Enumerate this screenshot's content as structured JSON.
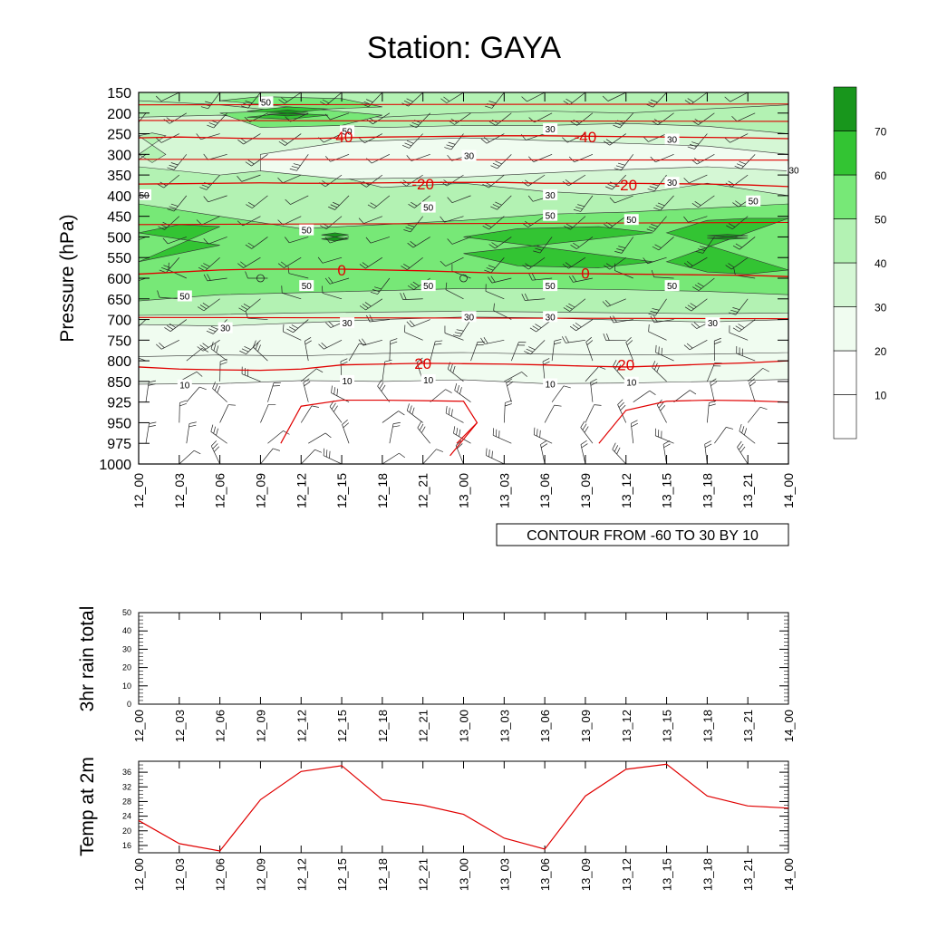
{
  "title": "Station: GAYA",
  "info_label": "CONTOUR FROM -60 TO 30 BY 10",
  "colors": {
    "fill_levels": [
      "#ffffff",
      "#f0fcf0",
      "#d5f7d5",
      "#b3f2b3",
      "#77e877",
      "#33c433",
      "#18961c"
    ],
    "temp_line": "#e00000"
  },
  "chart_data": [
    {
      "type": "heatmap",
      "ylabel": "Pressure (hPa)",
      "y_levels": [
        150,
        200,
        250,
        300,
        350,
        400,
        450,
        500,
        550,
        600,
        650,
        700,
        750,
        800,
        850,
        925,
        950,
        975,
        1000
      ],
      "x_ticks": [
        "12_00",
        "12_03",
        "12_06",
        "12_09",
        "12_12",
        "12_15",
        "12_18",
        "12_21",
        "13_00",
        "13_03",
        "13_06",
        "13_09",
        "13_12",
        "13_15",
        "13_18",
        "13_21",
        "14_00"
      ],
      "colorbar_ticks": [
        10,
        20,
        30,
        40,
        50,
        60,
        70
      ],
      "humidity_labels": [
        {
          "text": "50",
          "x": "12_09",
          "y": 175
        },
        {
          "text": "50",
          "x": "12_15",
          "y": 245
        },
        {
          "text": "30",
          "x": "13_06",
          "y": 240
        },
        {
          "text": "30",
          "x": "13_15",
          "y": 265
        },
        {
          "text": "30",
          "x": "13_00",
          "y": 305
        },
        {
          "text": "30",
          "x": "14_00",
          "y": 340
        },
        {
          "text": "50",
          "x": "12_00",
          "y": 400
        },
        {
          "text": "30",
          "x": "13_06",
          "y": 400
        },
        {
          "text": "30",
          "x": "13_15",
          "y": 370
        },
        {
          "text": "50",
          "x": "13_21",
          "y": 415
        },
        {
          "text": "50",
          "x": "12_21",
          "y": 430
        },
        {
          "text": "50",
          "x": "13_06",
          "y": 450
        },
        {
          "text": "50",
          "x": "13_12",
          "y": 460
        },
        {
          "text": "50",
          "x": "12_12",
          "y": 485
        },
        {
          "text": "50",
          "x": "12_12",
          "y": 620
        },
        {
          "text": "50",
          "x": "12_21",
          "y": 620
        },
        {
          "text": "50",
          "x": "13_06",
          "y": 620
        },
        {
          "text": "50",
          "x": "13_15",
          "y": 620
        },
        {
          "text": "50",
          "x": "12_03",
          "y": 645
        },
        {
          "text": "30",
          "x": "13_00",
          "y": 695
        },
        {
          "text": "30",
          "x": "13_06",
          "y": 695
        },
        {
          "text": "30",
          "x": "12_15",
          "y": 710
        },
        {
          "text": "30",
          "x": "13_18",
          "y": 710
        },
        {
          "text": "30",
          "x": "12_06",
          "y": 722
        },
        {
          "text": "10",
          "x": "12_15",
          "y": 850
        },
        {
          "text": "10",
          "x": "12_21",
          "y": 848
        },
        {
          "text": "10",
          "x": "13_06",
          "y": 862
        },
        {
          "text": "10",
          "x": "13_12",
          "y": 856
        },
        {
          "text": "10",
          "x": "12_03",
          "y": 866
        }
      ],
      "temperature_contours": [
        {
          "label": "-40",
          "levels": [
            [
              [
                0,
                260
              ],
              [
                3,
                258
              ],
              [
                6,
                260
              ],
              [
                9,
                262
              ],
              [
                12,
                262
              ],
              [
                15,
                260
              ],
              [
                18,
                258
              ],
              [
                21,
                257
              ],
              [
                24,
                256
              ],
              [
                27,
                255
              ],
              [
                30,
                255
              ],
              [
                33,
                256
              ],
              [
                36,
                257
              ],
              [
                39,
                258
              ],
              [
                42,
                259
              ],
              [
                45,
                260
              ],
              [
                48,
                262
              ]
            ]
          ],
          "labels": [
            {
              "x": "12_15",
              "y": 258
            },
            {
              "x": "13_09",
              "y": 258
            }
          ]
        },
        {
          "label": "-20",
          "levels": [
            [
              [
                0,
                372
              ],
              [
                3,
                371
              ],
              [
                6,
                370
              ],
              [
                9,
                369
              ],
              [
                12,
                370
              ],
              [
                15,
                370
              ],
              [
                18,
                369
              ],
              [
                21,
                368
              ],
              [
                24,
                368
              ],
              [
                27,
                368
              ],
              [
                30,
                370
              ],
              [
                33,
                370
              ],
              [
                36,
                370
              ],
              [
                39,
                371
              ],
              [
                42,
                372
              ],
              [
                45,
                374
              ],
              [
                48,
                378
              ]
            ]
          ],
          "labels": [
            {
              "x": "12_21",
              "y": 372
            },
            {
              "x": "13_12",
              "y": 374
            }
          ]
        },
        {
          "label": "0",
          "levels": [
            [
              [
                0,
                590
              ],
              [
                3,
                585
              ],
              [
                6,
                580
              ],
              [
                9,
                578
              ],
              [
                12,
                578
              ],
              [
                15,
                578
              ],
              [
                18,
                580
              ],
              [
                21,
                582
              ],
              [
                24,
                585
              ],
              [
                27,
                588
              ],
              [
                30,
                588
              ],
              [
                33,
                589
              ],
              [
                36,
                590
              ],
              [
                39,
                591
              ],
              [
                42,
                592
              ],
              [
                45,
                593
              ],
              [
                48,
                596
              ]
            ]
          ],
          "labels": [
            {
              "x": "12_15",
              "y": 580
            },
            {
              "x": "13_09",
              "y": 588
            }
          ]
        },
        {
          "label": "20",
          "levels": [
            [
              [
                0,
                815
              ],
              [
                3,
                820
              ],
              [
                6,
                822
              ],
              [
                9,
                823
              ],
              [
                12,
                820
              ],
              [
                15,
                810
              ],
              [
                18,
                808
              ],
              [
                21,
                806
              ],
              [
                24,
                807
              ],
              [
                27,
                808
              ],
              [
                30,
                810
              ],
              [
                33,
                813
              ],
              [
                36,
                815
              ],
              [
                39,
                812
              ],
              [
                42,
                808
              ],
              [
                45,
                805
              ],
              [
                48,
                800
              ]
            ]
          ],
          "labels": [
            {
              "x": "12_21",
              "y": 806
            },
            {
              "x": "13_12",
              "y": 810
            }
          ]
        }
      ]
    },
    {
      "type": "line",
      "ylabel": "3hr rain total",
      "ylim": [
        0,
        50
      ],
      "y_ticks": [
        0,
        10,
        20,
        30,
        40,
        50
      ],
      "x": [
        "12_00",
        "12_03",
        "12_06",
        "12_09",
        "12_12",
        "12_15",
        "12_18",
        "12_21",
        "13_00",
        "13_03",
        "13_06",
        "13_09",
        "13_12",
        "13_15",
        "13_18",
        "13_21",
        "14_00"
      ],
      "series": [
        {
          "values": [
            0,
            0,
            0,
            0,
            0,
            0,
            0,
            0,
            0,
            0,
            0,
            0,
            0,
            0,
            0,
            0,
            0
          ]
        }
      ]
    },
    {
      "type": "line",
      "ylabel": "Temp at 2m",
      "ylim": [
        14,
        39
      ],
      "y_ticks": [
        16,
        20,
        24,
        28,
        32,
        36
      ],
      "x": [
        "12_00",
        "12_03",
        "12_06",
        "12_09",
        "12_12",
        "12_15",
        "12_18",
        "12_21",
        "13_00",
        "13_03",
        "13_06",
        "13_09",
        "13_12",
        "13_15",
        "13_18",
        "13_21",
        "14_00"
      ],
      "series": [
        {
          "values": [
            22.8,
            16.5,
            14.5,
            28.5,
            36.2,
            37.8,
            28.5,
            27.0,
            24.5,
            18.0,
            15.0,
            29.5,
            36.8,
            38.2,
            29.5,
            26.8,
            26.2
          ]
        }
      ]
    }
  ]
}
